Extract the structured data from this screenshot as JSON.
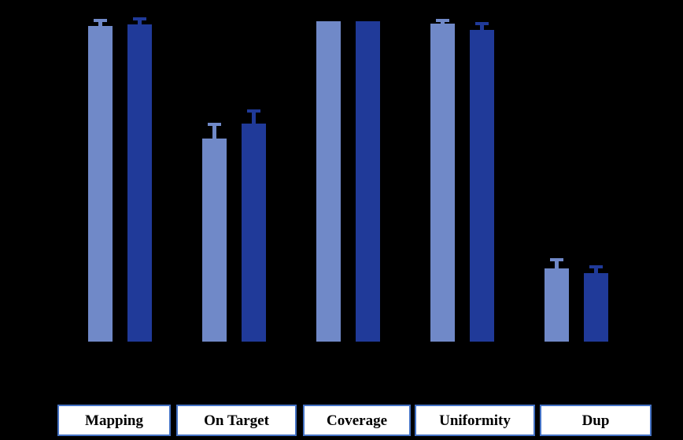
{
  "chart_data": {
    "type": "bar",
    "title": "",
    "xlabel": "",
    "ylabel": "",
    "ylim": [
      0,
      100
    ],
    "grid": false,
    "legend": "none",
    "background_color": "#000000",
    "category_box_fill": "#FFFFFF",
    "category_box_border": "#4472C4",
    "category_text_color": "#000000",
    "categories": [
      "Mapping",
      "On Target",
      "Coverage",
      "Uniformity",
      "Dup"
    ],
    "series": [
      {
        "name": "light-blue-series",
        "color": "#7089C8",
        "values": [
          98.5,
          63.4,
          100.0,
          99.3,
          22.9
        ],
        "errors": [
          1.3,
          4.0,
          0,
          0.5,
          2.1
        ]
      },
      {
        "name": "dark-blue-series",
        "color": "#203A99",
        "values": [
          98.9,
          68.1,
          100.0,
          97.4,
          21.3
        ],
        "errors": [
          1.3,
          3.3,
          0,
          1.4,
          1.6
        ]
      }
    ]
  }
}
